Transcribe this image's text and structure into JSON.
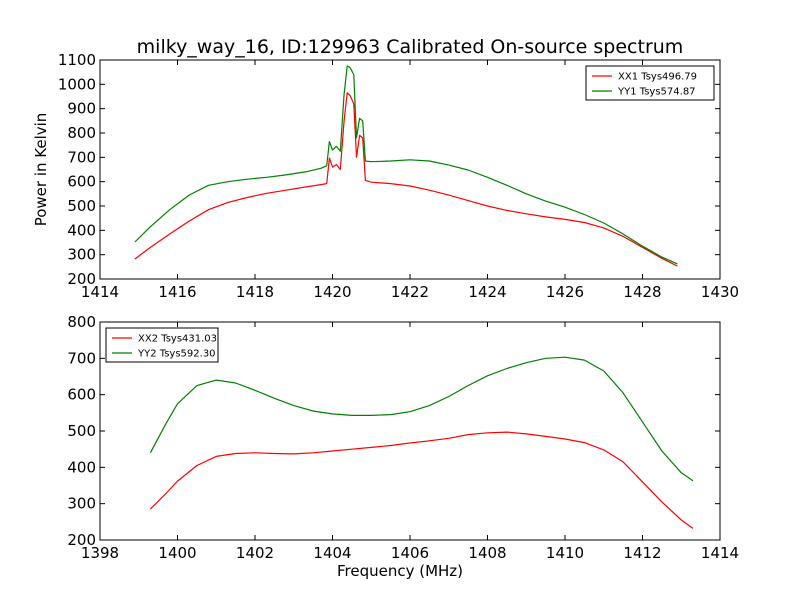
{
  "title": "milky_way_16, ID:129963 Calibrated On-source spectrum",
  "chart_data": [
    {
      "type": "line",
      "title": "milky_way_16, ID:129963 Calibrated On-source spectrum",
      "xlabel": "",
      "ylabel": "Power in Kelvin",
      "xlim": [
        1414,
        1430
      ],
      "ylim": [
        200,
        1100
      ],
      "xticks": [
        1414,
        1416,
        1418,
        1420,
        1422,
        1424,
        1426,
        1428,
        1430
      ],
      "yticks": [
        200,
        300,
        400,
        500,
        600,
        700,
        800,
        900,
        1000,
        1100
      ],
      "grid": false,
      "legend": "top-right",
      "series": [
        {
          "name": "XX1 Tsys496.79",
          "color": "#ff0000",
          "x": [
            1414.9,
            1415.3,
            1415.8,
            1416.3,
            1416.8,
            1417.3,
            1417.8,
            1418.3,
            1418.8,
            1419.3,
            1419.7,
            1419.85,
            1419.92,
            1420.0,
            1420.1,
            1420.2,
            1420.3,
            1420.38,
            1420.45,
            1420.55,
            1420.62,
            1420.7,
            1420.78,
            1420.85,
            1421.0,
            1421.5,
            1422.0,
            1422.5,
            1423.0,
            1423.5,
            1424.0,
            1424.5,
            1425.0,
            1425.5,
            1426.0,
            1426.5,
            1427.0,
            1427.5,
            1428.0,
            1428.5,
            1428.9
          ],
          "y": [
            282,
            330,
            385,
            438,
            485,
            515,
            535,
            552,
            565,
            578,
            588,
            592,
            697,
            660,
            670,
            650,
            850,
            965,
            955,
            920,
            700,
            790,
            780,
            605,
            598,
            592,
            582,
            565,
            545,
            522,
            500,
            482,
            468,
            455,
            445,
            432,
            410,
            375,
            330,
            285,
            253
          ]
        },
        {
          "name": "YY1 Tsys574.87",
          "color": "#008000",
          "x": [
            1414.9,
            1415.3,
            1415.8,
            1416.3,
            1416.8,
            1417.3,
            1417.8,
            1418.3,
            1418.8,
            1419.3,
            1419.7,
            1419.85,
            1419.92,
            1420.0,
            1420.1,
            1420.2,
            1420.3,
            1420.38,
            1420.45,
            1420.55,
            1420.62,
            1420.7,
            1420.78,
            1420.85,
            1421.0,
            1421.5,
            1422.0,
            1422.5,
            1423.0,
            1423.5,
            1424.0,
            1424.5,
            1425.0,
            1425.5,
            1426.0,
            1426.5,
            1427.0,
            1427.5,
            1428.0,
            1428.5,
            1428.9
          ],
          "y": [
            352,
            415,
            485,
            545,
            585,
            600,
            610,
            618,
            628,
            640,
            655,
            665,
            765,
            730,
            745,
            725,
            960,
            1075,
            1070,
            1040,
            780,
            860,
            850,
            685,
            682,
            685,
            690,
            685,
            668,
            648,
            618,
            585,
            550,
            520,
            495,
            465,
            430,
            385,
            335,
            290,
            262
          ]
        }
      ]
    },
    {
      "type": "line",
      "title": "",
      "xlabel": "Frequency (MHz)",
      "ylabel": "",
      "xlim": [
        1398,
        1414
      ],
      "ylim": [
        200,
        800
      ],
      "xticks": [
        1398,
        1400,
        1402,
        1404,
        1406,
        1408,
        1410,
        1412,
        1414
      ],
      "yticks": [
        200,
        300,
        400,
        500,
        600,
        700,
        800
      ],
      "grid": false,
      "legend": "top-left",
      "series": [
        {
          "name": "XX2 Tsys431.03",
          "color": "#ff0000",
          "x": [
            1399.3,
            1399.7,
            1400.0,
            1400.5,
            1401.0,
            1401.5,
            1402.0,
            1402.5,
            1403.0,
            1403.5,
            1404.0,
            1404.5,
            1405.0,
            1405.5,
            1406.0,
            1406.5,
            1407.0,
            1407.5,
            1408.0,
            1408.5,
            1409.0,
            1409.5,
            1410.0,
            1410.5,
            1411.0,
            1411.5,
            1412.0,
            1412.5,
            1413.0,
            1413.3
          ],
          "y": [
            285,
            328,
            362,
            405,
            430,
            438,
            440,
            438,
            437,
            440,
            445,
            450,
            455,
            460,
            467,
            473,
            480,
            490,
            495,
            497,
            492,
            485,
            478,
            468,
            448,
            415,
            360,
            305,
            255,
            232
          ]
        },
        {
          "name": "YY2 Tsys592.30",
          "color": "#008000",
          "x": [
            1399.3,
            1399.7,
            1400.0,
            1400.5,
            1401.0,
            1401.5,
            1402.0,
            1402.5,
            1403.0,
            1403.5,
            1404.0,
            1404.5,
            1405.0,
            1405.5,
            1406.0,
            1406.5,
            1407.0,
            1407.5,
            1408.0,
            1408.5,
            1409.0,
            1409.5,
            1410.0,
            1410.5,
            1411.0,
            1411.5,
            1412.0,
            1412.5,
            1413.0,
            1413.3
          ],
          "y": [
            440,
            520,
            575,
            625,
            640,
            632,
            612,
            590,
            570,
            555,
            547,
            543,
            543,
            545,
            553,
            570,
            595,
            625,
            652,
            672,
            688,
            700,
            703,
            695,
            665,
            605,
            525,
            445,
            385,
            363
          ]
        }
      ]
    }
  ]
}
